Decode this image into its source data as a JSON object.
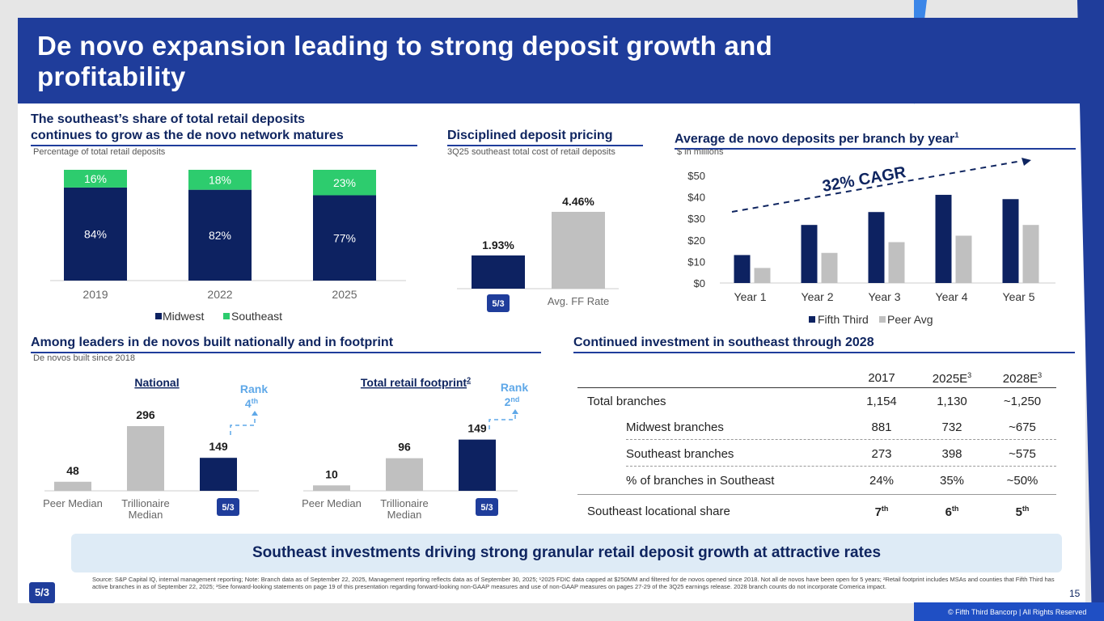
{
  "title": "De novo expansion leading to strong deposit growth and profitability",
  "brand_colors": {
    "navy": "#0d2261",
    "green": "#2dcc6e",
    "gray": "#c0c0c0",
    "blue": "#1f3d9b",
    "light_blue": "#5fa8e8"
  },
  "logo_text": "5/3",
  "section1": {
    "heading_line1": "The southeast’s share of total retail deposits",
    "heading_line2": "continues to grow as the de novo network matures",
    "subtitle": "Percentage of total retail deposits"
  },
  "section2": {
    "heading": "Disciplined deposit pricing",
    "subtitle": "3Q25 southeast total cost of retail deposits"
  },
  "section3": {
    "heading": "Average de novo deposits per branch by year",
    "heading_sup": "1",
    "subtitle": "$ in millions",
    "cagr_label": "32% CAGR"
  },
  "section4": {
    "heading": "Among leaders in de novos built nationally and in footprint",
    "subtitle": "De novos built since 2018",
    "national_title": "National",
    "footprint_title": "Total retail footprint",
    "footprint_sup": "2",
    "rank_label": "Rank",
    "national_rank": "4",
    "national_rank_suffix": "th",
    "footprint_rank": "2",
    "footprint_rank_suffix": "nd"
  },
  "section5": {
    "heading": "Continued investment in southeast through 2028",
    "columns": [
      "2017",
      "2025E",
      "2028E"
    ],
    "column_sup": [
      "",
      "3",
      "3"
    ],
    "rows": [
      {
        "label": "Total branches",
        "values": [
          "1,154",
          "1,130",
          "~1,250"
        ]
      },
      {
        "label": "Midwest branches",
        "values": [
          "881",
          "732",
          "~675"
        ]
      },
      {
        "label": "Southeast branches",
        "values": [
          "273",
          "398",
          "~575"
        ]
      },
      {
        "label": "% of branches in Southeast",
        "values": [
          "24%",
          "35%",
          "~50%"
        ]
      }
    ],
    "locational_share": {
      "label": "Southeast locational share",
      "values": [
        "7",
        "6",
        "5"
      ],
      "suffix": "th"
    }
  },
  "banner": "Southeast investments driving strong granular retail deposit growth at attractive rates",
  "footnote": "Source: S&P Capital IQ, internal management reporting; Note: Branch data as of September 22, 2025, Management reporting reflects data as of September 30, 2025; ¹2025 FDIC data capped at $250MM and filtered for de novos opened since 2018. Not all de novos have been open for 5 years; ²Retail footprint includes MSAs and counties that Fifth Third has active branches in as of September 22, 2025; ³See forward-looking statements on page 19 of this presentation regarding forward-looking non-GAAP measures and use of non-GAAP measures on pages 27-29 of the 3Q25 earnings release. 2028 branch counts do not incorporate Comerica impact.",
  "page_number": "15",
  "copyright": "© Fifth Third Bancorp | All Rights Reserved",
  "chart_data": [
    {
      "type": "bar",
      "stacked": true,
      "title": "",
      "categories": [
        "2019",
        "2022",
        "2025"
      ],
      "series": [
        {
          "name": "Midwest",
          "values": [
            84,
            82,
            77
          ],
          "labels": [
            "84%",
            "82%",
            "77%"
          ]
        },
        {
          "name": "Southeast",
          "values": [
            16,
            18,
            23
          ],
          "labels": [
            "16%",
            "18%",
            "23%"
          ]
        }
      ],
      "ylim": [
        0,
        100
      ]
    },
    {
      "type": "bar",
      "categories": [
        "Fifth Third",
        "Avg. FF Rate"
      ],
      "values": [
        1.93,
        4.46
      ],
      "labels": [
        "1.93%",
        "4.46%"
      ],
      "ylim": [
        0,
        5
      ]
    },
    {
      "type": "bar",
      "categories": [
        "Year 1",
        "Year 2",
        "Year 3",
        "Year 4",
        "Year 5"
      ],
      "series": [
        {
          "name": "Fifth Third",
          "values": [
            13,
            27,
            33,
            41,
            39
          ]
        },
        {
          "name": "Peer Avg",
          "values": [
            7,
            14,
            19,
            22,
            27
          ]
        }
      ],
      "yticks": [
        "$0",
        "$10",
        "$20",
        "$30",
        "$40",
        "$50"
      ],
      "ylim": [
        0,
        50
      ],
      "annotation": "32% CAGR"
    },
    {
      "type": "bar",
      "title": "National",
      "categories": [
        "Peer Median",
        "Trillionaire Median",
        "Fifth Third"
      ],
      "values": [
        48,
        296,
        149
      ],
      "labels": [
        "48",
        "296",
        "149"
      ],
      "ylim": [
        0,
        300
      ]
    },
    {
      "type": "bar",
      "title": "Total retail footprint",
      "categories": [
        "Peer Median",
        "Trillionaire Median",
        "Fifth Third"
      ],
      "values": [
        10,
        96,
        149
      ],
      "labels": [
        "10",
        "96",
        "149"
      ],
      "ylim": [
        0,
        149
      ]
    }
  ]
}
